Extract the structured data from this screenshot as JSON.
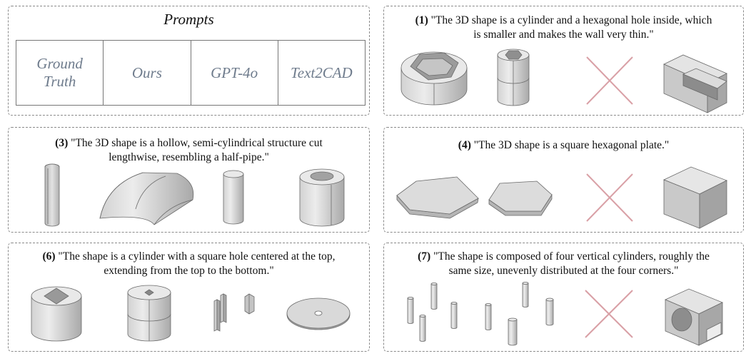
{
  "legend": {
    "title": "Prompts",
    "columns": [
      "Ground Truth",
      "Ours",
      "GPT-4o",
      "Text2CAD"
    ]
  },
  "panels": [
    {
      "id": "1",
      "num": "(1)",
      "text": "\"The 3D shape is a cylinder and a hexagonal hole inside, which is smaller and makes the wall very thin.\"",
      "line1": "\"The 3D shape is a cylinder and a hexagonal hole inside, which",
      "line2": "is smaller and makes the wall very thin.\""
    },
    {
      "id": "3",
      "num": "(3)",
      "line1": "\"The 3D shape is a hollow, semi-cylindrical structure cut",
      "line2": "lengthwise, resembling a half-pipe.\""
    },
    {
      "id": "4",
      "num": "(4)",
      "line1": "\"The 3D shape is a square hexagonal plate.\"",
      "line2": ""
    },
    {
      "id": "6",
      "num": "(6)",
      "line1": "\"The shape is a cylinder with a square hole centered at the top,",
      "line2": "extending from the top to the bottom.\""
    },
    {
      "id": "7",
      "num": "(7)",
      "line1": "\"The  shape is composed of four vertical cylinders, roughly the",
      "line2": "same size, unevenly distributed at the four corners.\""
    }
  ],
  "colors": {
    "failure_cross": "#d9a0a6",
    "shape_light": "#e6e6e6",
    "shape_mid": "#c8c8c8",
    "shape_dark": "#a5a5a5"
  }
}
